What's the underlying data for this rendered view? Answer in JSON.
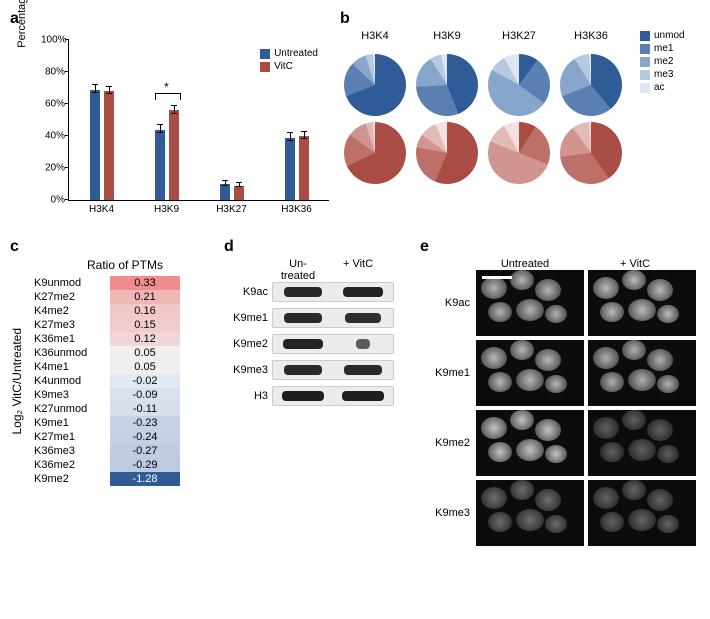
{
  "panel_labels": {
    "a": "a",
    "b": "b",
    "c": "c",
    "d": "d",
    "e": "e"
  },
  "colors": {
    "untreated": "#2f5b96",
    "vitc": "#a84c44",
    "untreated_shades": [
      "#2f5b96",
      "#5a80b3",
      "#88a5cc",
      "#b6c9e2",
      "#dde6f2"
    ],
    "vitc_shades": [
      "#a84c44",
      "#bc7069",
      "#d0958f",
      "#e3bbb6",
      "#f3e0de"
    ],
    "heat_pos": [
      "#f5d4d4",
      "#f0c3c3",
      "#ecb7b7",
      "#e8abab",
      "#e09a9a"
    ],
    "heat_neg": [
      "#e9eef5",
      "#d7e1ee",
      "#c3d2e6",
      "#aec2dd",
      "#2f5b96"
    ]
  },
  "panel_a": {
    "ylabel": "Percentage of unmodified peptide",
    "ylim": [
      0,
      100
    ],
    "ytick_step": 20,
    "categories": [
      "H3K4",
      "H3K9",
      "H3K27",
      "H3K36"
    ],
    "series": [
      {
        "name": "Untreated",
        "color": "#2f5b96",
        "values": [
          69,
          44,
          10,
          39
        ],
        "err": [
          2,
          2,
          1,
          2
        ]
      },
      {
        "name": "VitC",
        "color": "#a84c44",
        "values": [
          68,
          56,
          9,
          40
        ],
        "err": [
          2,
          2,
          1,
          2
        ]
      }
    ],
    "significance": {
      "group_index": 1,
      "label": "*"
    }
  },
  "panel_b": {
    "columns": [
      "H3K4",
      "H3K9",
      "H3K27",
      "H3K36"
    ],
    "legend": [
      "unmod",
      "me1",
      "me2",
      "me3",
      "ac"
    ],
    "untreated": [
      [
        69,
        18,
        8,
        4,
        1
      ],
      [
        44,
        30,
        17,
        6,
        3
      ],
      [
        10,
        25,
        48,
        9,
        8
      ],
      [
        39,
        30,
        22,
        8,
        1
      ]
    ],
    "vitc": [
      [
        68,
        17,
        10,
        4,
        1
      ],
      [
        56,
        22,
        7,
        9,
        6
      ],
      [
        9,
        22,
        50,
        11,
        8
      ],
      [
        40,
        33,
        17,
        9,
        1
      ]
    ]
  },
  "panel_c": {
    "title": "Ratio of PTMs",
    "ylabel": "Log₂ VitC/Untreated",
    "rows": [
      {
        "name": "K9unmod",
        "val": 0.33
      },
      {
        "name": "K27me2",
        "val": 0.21
      },
      {
        "name": "K4me2",
        "val": 0.16
      },
      {
        "name": "K27me3",
        "val": 0.15
      },
      {
        "name": "K36me1",
        "val": 0.12
      },
      {
        "name": "K36unmod",
        "val": 0.05
      },
      {
        "name": "K4me1",
        "val": 0.05
      },
      {
        "name": "K4unmod",
        "val": -0.02
      },
      {
        "name": "K9me3",
        "val": -0.09
      },
      {
        "name": "K27unmod",
        "val": -0.11
      },
      {
        "name": "K9me1",
        "val": -0.23
      },
      {
        "name": "K27me1",
        "val": -0.24
      },
      {
        "name": "K36me3",
        "val": -0.27
      },
      {
        "name": "K36me2",
        "val": -0.29
      },
      {
        "name": "K9me2",
        "val": -1.28
      }
    ]
  },
  "panel_d": {
    "conditions": [
      "Un-\ntreated",
      "+ VitC"
    ],
    "rows": [
      {
        "name": "K9ac",
        "intensity": [
          0.85,
          0.9
        ]
      },
      {
        "name": "K9me1",
        "intensity": [
          0.85,
          0.8
        ]
      },
      {
        "name": "K9me2",
        "intensity": [
          0.9,
          0.3
        ]
      },
      {
        "name": "K9me3",
        "intensity": [
          0.85,
          0.85
        ]
      },
      {
        "name": "H3",
        "intensity": [
          0.95,
          0.95
        ]
      }
    ]
  },
  "panel_e": {
    "conditions": [
      "Untreated",
      "+ VitC"
    ],
    "rows": [
      {
        "name": "K9ac",
        "brightness": [
          0.7,
          0.74
        ]
      },
      {
        "name": "K9me1",
        "brightness": [
          0.72,
          0.68
        ]
      },
      {
        "name": "K9me2",
        "brightness": [
          0.78,
          0.28
        ]
      },
      {
        "name": "K9me3",
        "brightness": [
          0.35,
          0.3
        ]
      }
    ],
    "scalebar_on": {
      "row": 0,
      "col": 0
    }
  }
}
